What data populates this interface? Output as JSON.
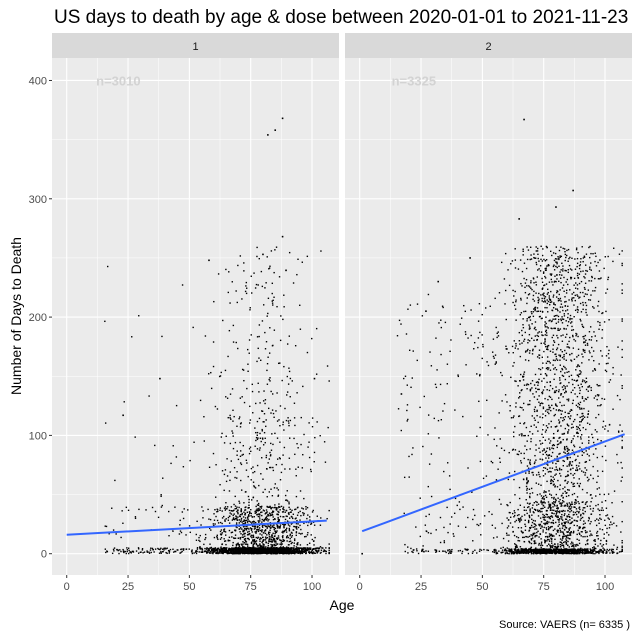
{
  "title": "US days to death by age & dose between 2020-01-01 to 2021-11-23",
  "caption": "Source: VAERS (n= 6335 )",
  "chart_data": {
    "type": "scatter",
    "xlabel": "Age",
    "ylabel": "Number of Days to Death",
    "xlim": [
      -6,
      111
    ],
    "ylim": [
      -18,
      419
    ],
    "x_ticks": [
      0,
      25,
      50,
      75,
      100
    ],
    "y_ticks": [
      0,
      100,
      200,
      300,
      400
    ],
    "grid": true,
    "facet_by": "dose",
    "panels": [
      {
        "label": "1",
        "annotation": "n=3010",
        "n": 3010,
        "trend": {
          "x": [
            0,
            106
          ],
          "y": [
            16,
            28
          ]
        },
        "notable_points": [
          [
            88,
            368
          ],
          [
            82,
            354
          ],
          [
            85,
            358
          ],
          [
            88,
            268
          ],
          [
            58,
            248
          ],
          [
            80,
            253
          ],
          [
            23,
            117
          ],
          [
            38,
            148
          ],
          [
            101,
            148
          ]
        ]
      },
      {
        "label": "2",
        "annotation": "n=3325",
        "n": 3325,
        "trend": {
          "x": [
            1,
            108
          ],
          "y": [
            19,
            101
          ]
        },
        "notable_points": [
          [
            67,
            367
          ],
          [
            87,
            307
          ],
          [
            65,
            283
          ],
          [
            80,
            293
          ],
          [
            45,
            250
          ],
          [
            32,
            230
          ],
          [
            17,
            135
          ],
          [
            27,
            205
          ],
          [
            1,
            0
          ]
        ]
      }
    ],
    "colors": {
      "points": "#000000",
      "trend": "#3366FF",
      "annotation": "#D3D3D3",
      "panel_bg": "#EBEBEB",
      "strip_bg": "#D9D9D9",
      "grid": "#FFFFFF"
    }
  }
}
